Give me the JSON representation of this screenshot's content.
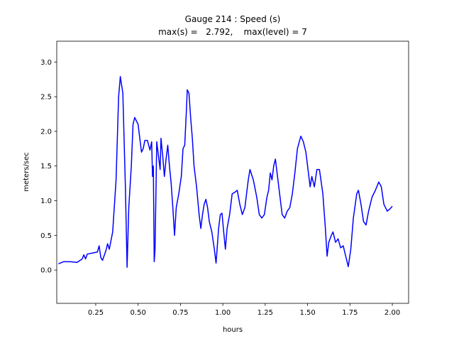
{
  "chart_data": {
    "type": "line",
    "title": [
      "Gauge 214 : Speed (s)",
      "max(s) =   2.792,    max(level) = 7"
    ],
    "xlabel": "hours",
    "ylabel": "meters/sec",
    "xlim": [
      0.02,
      2.096
    ],
    "ylim": [
      -0.48,
      3.3
    ],
    "xticks": [
      0.25,
      {
        "value": 0.5,
        "label": "0.50"
      },
      0.75,
      {
        "value": 1.0,
        "label": "1.00"
      },
      1.25,
      {
        "value": 1.5,
        "label": "1.50"
      },
      1.75,
      {
        "value": 2.0,
        "label": "2.00"
      }
    ],
    "yticks": [
      {
        "value": 0,
        "label": "0.0"
      },
      0.5,
      {
        "value": 1,
        "label": "1.0"
      },
      1.5,
      {
        "value": 2,
        "label": "2.0"
      },
      2.5,
      {
        "value": 3,
        "label": "3.0"
      }
    ],
    "grid": false,
    "series": [
      {
        "name": "s",
        "color": "#0000ff",
        "x": [
          0.03,
          0.06,
          0.1,
          0.14,
          0.17,
          0.18,
          0.19,
          0.2,
          0.24,
          0.26,
          0.27,
          0.28,
          0.29,
          0.31,
          0.32,
          0.33,
          0.35,
          0.37,
          0.385,
          0.395,
          0.41,
          0.425,
          0.435,
          0.445,
          0.46,
          0.47,
          0.48,
          0.49,
          0.5,
          0.51,
          0.52,
          0.53,
          0.54,
          0.555,
          0.57,
          0.58,
          0.585,
          0.59,
          0.595,
          0.6,
          0.61,
          0.62,
          0.63,
          0.635,
          0.645,
          0.655,
          0.665,
          0.675,
          0.685,
          0.695,
          0.705,
          0.715,
          0.725,
          0.74,
          0.755,
          0.765,
          0.775,
          0.785,
          0.79,
          0.8,
          0.81,
          0.82,
          0.83,
          0.845,
          0.86,
          0.87,
          0.88,
          0.89,
          0.9,
          0.91,
          0.92,
          0.935,
          0.95,
          0.96,
          0.975,
          0.985,
          0.995,
          1.005,
          1.015,
          1.025,
          1.04,
          1.055,
          1.07,
          1.085,
          1.1,
          1.115,
          1.13,
          1.14,
          1.15,
          1.16,
          1.18,
          1.2,
          1.215,
          1.23,
          1.245,
          1.26,
          1.27,
          1.28,
          1.29,
          1.3,
          1.31,
          1.32,
          1.335,
          1.35,
          1.365,
          1.38,
          1.395,
          1.41,
          1.425,
          1.44,
          1.46,
          1.475,
          1.49,
          1.505,
          1.515,
          1.525,
          1.54,
          1.555,
          1.57,
          1.59,
          1.605,
          1.615,
          1.625,
          1.64,
          1.65,
          1.665,
          1.68,
          1.695,
          1.71,
          1.725,
          1.74,
          1.755,
          1.77,
          1.79,
          1.8,
          1.815,
          1.83,
          1.845,
          1.86,
          1.88,
          1.9,
          1.92,
          1.935,
          1.95,
          1.97,
          1.985,
          2.0
        ],
        "values": [
          0.09,
          0.12,
          0.12,
          0.11,
          0.16,
          0.22,
          0.16,
          0.23,
          0.25,
          0.26,
          0.35,
          0.18,
          0.14,
          0.28,
          0.38,
          0.3,
          0.55,
          1.3,
          2.5,
          2.79,
          2.55,
          1.2,
          0.04,
          0.9,
          1.5,
          2.1,
          2.2,
          2.15,
          2.1,
          1.9,
          1.7,
          1.75,
          1.87,
          1.87,
          1.73,
          1.85,
          1.35,
          1.5,
          0.12,
          0.3,
          1.85,
          1.65,
          1.45,
          1.9,
          1.65,
          1.35,
          1.6,
          1.8,
          1.5,
          1.25,
          0.9,
          0.5,
          0.9,
          1.1,
          1.35,
          1.75,
          1.8,
          2.3,
          2.6,
          2.55,
          2.2,
          1.9,
          1.5,
          1.2,
          0.8,
          0.6,
          0.8,
          0.95,
          1.02,
          0.9,
          0.7,
          0.55,
          0.3,
          0.1,
          0.6,
          0.8,
          0.82,
          0.55,
          0.3,
          0.6,
          0.8,
          1.1,
          1.12,
          1.15,
          0.95,
          0.8,
          0.9,
          1.1,
          1.3,
          1.45,
          1.3,
          1.05,
          0.8,
          0.75,
          0.8,
          1.05,
          1.15,
          1.4,
          1.3,
          1.5,
          1.6,
          1.4,
          1.1,
          0.8,
          0.75,
          0.85,
          0.9,
          1.1,
          1.4,
          1.75,
          1.93,
          1.85,
          1.7,
          1.4,
          1.2,
          1.35,
          1.2,
          1.45,
          1.45,
          1.1,
          0.6,
          0.2,
          0.4,
          0.5,
          0.55,
          0.4,
          0.45,
          0.32,
          0.35,
          0.2,
          0.05,
          0.3,
          0.75,
          1.1,
          1.15,
          0.95,
          0.7,
          0.65,
          0.85,
          1.05,
          1.15,
          1.27,
          1.2,
          0.95,
          0.85,
          0.88,
          0.92
        ]
      }
    ]
  }
}
